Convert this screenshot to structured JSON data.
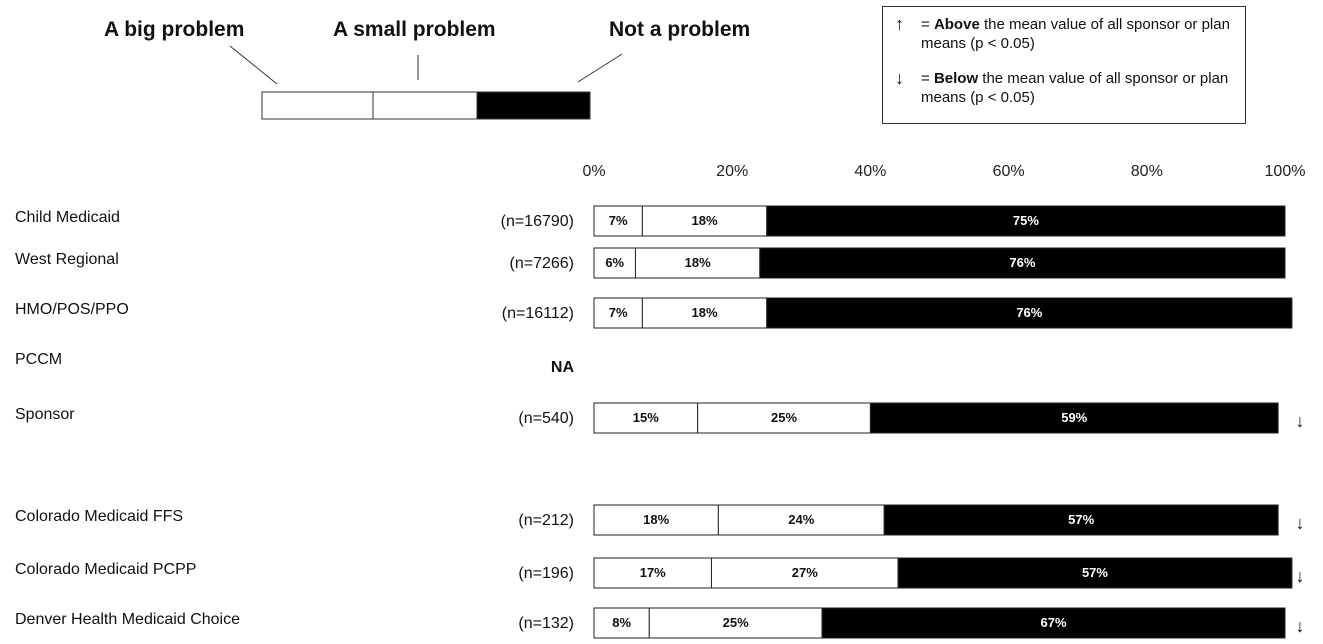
{
  "legend": {
    "big": "A big problem",
    "small": "A small problem",
    "not": "Not a problem"
  },
  "key": {
    "above_symbol": "↑",
    "above_prefix": "= ",
    "above_bold": "Above",
    "above_rest": " the mean value of all sponsor or plan means (p < 0.05)",
    "below_symbol": "↓",
    "below_prefix": "= ",
    "below_bold": "Below",
    "below_rest": " the mean value of all sponsor or plan means (p < 0.05)"
  },
  "colors": {
    "big": "#ffffff",
    "small": "#ffffff",
    "not": "#000000"
  },
  "chart_data": {
    "type": "bar",
    "orientation": "horizontal",
    "stacked": true,
    "xlim": [
      0,
      100
    ],
    "xticks": [
      "0%",
      "20%",
      "40%",
      "60%",
      "80%",
      "100%"
    ],
    "series": [
      {
        "name": "A big problem"
      },
      {
        "name": "A small problem"
      },
      {
        "name": "Not a problem"
      }
    ],
    "rows": [
      {
        "label": "Child Medicaid",
        "n": "(n=16790)",
        "values": [
          7,
          18,
          75
        ],
        "labels": [
          "7%",
          "18%",
          "75%"
        ],
        "sig": ""
      },
      {
        "label": "West Regional",
        "n": "(n=7266)",
        "values": [
          6,
          18,
          76
        ],
        "labels": [
          "6%",
          "18%",
          "76%"
        ],
        "sig": ""
      },
      {
        "label": "HMO/POS/PPO",
        "n": "(n=16112)",
        "values": [
          7,
          18,
          76
        ],
        "labels": [
          "7%",
          "18%",
          "76%"
        ],
        "sig": ""
      },
      {
        "label": "PCCM",
        "n": "NA",
        "values": [],
        "labels": [],
        "sig": ""
      },
      {
        "label": "Sponsor",
        "n": "(n=540)",
        "values": [
          15,
          25,
          59
        ],
        "labels": [
          "15%",
          "25%",
          "59%"
        ],
        "sig": "↓"
      },
      {
        "label": "Colorado Medicaid FFS",
        "n": "(n=212)",
        "values": [
          18,
          24,
          57
        ],
        "labels": [
          "18%",
          "24%",
          "57%"
        ],
        "sig": "↓"
      },
      {
        "label": "Colorado Medicaid PCPP",
        "n": "(n=196)",
        "values": [
          17,
          27,
          57
        ],
        "labels": [
          "17%",
          "27%",
          "57%"
        ],
        "sig": "↓"
      },
      {
        "label": "Denver Health Medicaid Choice",
        "n": "(n=132)",
        "values": [
          8,
          25,
          67
        ],
        "labels": [
          "8%",
          "25%",
          "67%"
        ],
        "sig": "↓"
      }
    ]
  }
}
